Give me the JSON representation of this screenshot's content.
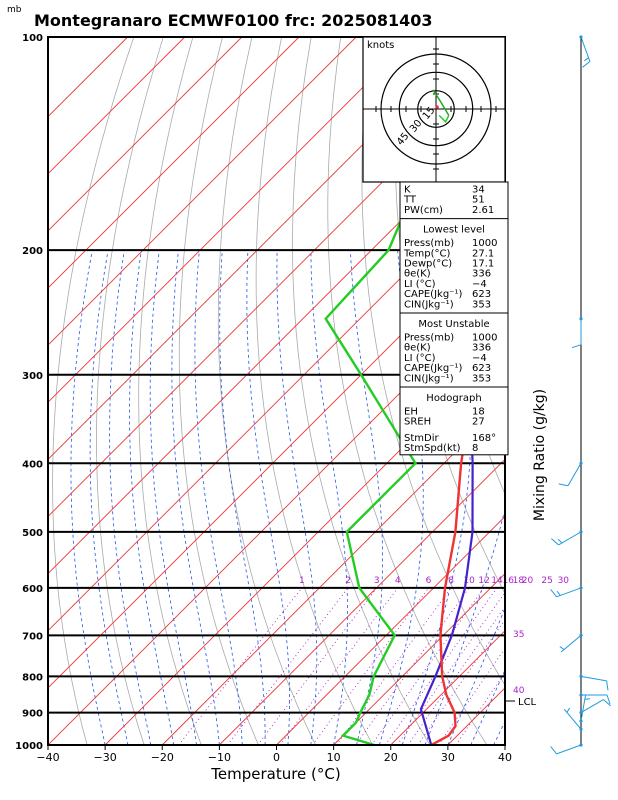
{
  "chart_data": {
    "type": "skew-t",
    "title": "Montegranaro ECMWF0100  frc: 2025081403",
    "pressure_unit": "mb",
    "xlabel": "Temperature (°C)",
    "right_label": "Mixing Ratio (g/kg)",
    "xlim": [
      -40,
      40
    ],
    "plim": [
      1000,
      100
    ],
    "x_ticks": [
      "−40",
      "−30",
      "−20",
      "−10",
      "0",
      "10",
      "20",
      "30",
      "40"
    ],
    "pressure_levels": [
      1000,
      900,
      800,
      700,
      600,
      500,
      400,
      300,
      200,
      100
    ],
    "pressure_labels": [
      "1000",
      "900",
      "800",
      "700",
      "600",
      "500",
      "400",
      "300",
      "200",
      "100"
    ],
    "mixing_ratio_labels": [
      "1",
      "2",
      "3",
      "4",
      "6",
      "8",
      "10",
      "12",
      "14",
      "16",
      "18",
      "20",
      "25",
      "30"
    ],
    "mixing_ratio_values": [
      1,
      2,
      3,
      4,
      6,
      8,
      10,
      12,
      14,
      16,
      18,
      20,
      25,
      30
    ],
    "theta_e_labels": [
      "35",
      "40"
    ],
    "lcl_label": "LCL",
    "lcl_pressure": 890,
    "temperature": [
      {
        "p": 1000,
        "t": 27.1
      },
      {
        "p": 970,
        "t": 28.5
      },
      {
        "p": 940,
        "t": 28.0
      },
      {
        "p": 900,
        "t": 25.5
      },
      {
        "p": 850,
        "t": 21.0
      },
      {
        "p": 800,
        "t": 17.0
      },
      {
        "p": 700,
        "t": 9.5
      },
      {
        "p": 600,
        "t": 2.0
      },
      {
        "p": 500,
        "t": -6.0
      },
      {
        "p": 400,
        "t": -17.0
      },
      {
        "p": 300,
        "t": -30.0
      },
      {
        "p": 250,
        "t": -40.0
      },
      {
        "p": 200,
        "t": -52.0
      },
      {
        "p": 150,
        "t": -62.0
      },
      {
        "p": 100,
        "t": -72.0
      }
    ],
    "dewpoint": [
      {
        "p": 1000,
        "t": 17.1
      },
      {
        "p": 970,
        "t": 10.0
      },
      {
        "p": 930,
        "t": 10.0
      },
      {
        "p": 900,
        "t": 9.0
      },
      {
        "p": 850,
        "t": 7.5
      },
      {
        "p": 800,
        "t": 5.0
      },
      {
        "p": 700,
        "t": 1.5
      },
      {
        "p": 600,
        "t": -13.0
      },
      {
        "p": 500,
        "t": -25.0
      },
      {
        "p": 400,
        "t": -25.0
      },
      {
        "p": 300,
        "t": -50.0
      },
      {
        "p": 250,
        "t": -66.0
      },
      {
        "p": 200,
        "t": -67.0
      },
      {
        "p": 150,
        "t": -76.0
      },
      {
        "p": 100,
        "t": -88.0
      }
    ],
    "parcel": [
      {
        "p": 1000,
        "t": 27.1
      },
      {
        "p": 890,
        "t": 19.0
      },
      {
        "p": 800,
        "t": 15.8
      },
      {
        "p": 700,
        "t": 11.5
      },
      {
        "p": 600,
        "t": 5.5
      },
      {
        "p": 500,
        "t": -3.0
      },
      {
        "p": 400,
        "t": -15.0
      },
      {
        "p": 300,
        "t": -31.0
      },
      {
        "p": 200,
        "t": -57.0
      },
      {
        "p": 130,
        "t": -82.0
      }
    ],
    "wind_barbs": [
      {
        "p": 1000,
        "dir": 250,
        "spd": 10
      },
      {
        "p": 950,
        "dir": 320,
        "spd": 5
      },
      {
        "p": 925,
        "dir": 10,
        "spd": 5
      },
      {
        "p": 900,
        "dir": 60,
        "spd": 10
      },
      {
        "p": 850,
        "dir": 90,
        "spd": 10
      },
      {
        "p": 800,
        "dir": 100,
        "spd": 10
      },
      {
        "p": 700,
        "dir": 230,
        "spd": 5
      },
      {
        "p": 600,
        "dir": 250,
        "spd": 15
      },
      {
        "p": 500,
        "dir": 240,
        "spd": 15
      },
      {
        "p": 400,
        "dir": 210,
        "spd": 10
      },
      {
        "p": 250,
        "dir": 180,
        "spd": 10
      },
      {
        "p": 100,
        "dir": 160,
        "spd": 15
      }
    ],
    "hodograph": {
      "units": "knots",
      "rings": [
        15,
        30,
        45
      ],
      "ring_labels": [
        "15",
        "30",
        "45"
      ],
      "points": [
        {
          "u": 1,
          "v": -2
        },
        {
          "u": 2,
          "v": -3
        },
        {
          "u": 3,
          "v": -4
        },
        {
          "u": 4,
          "v": -2
        },
        {
          "u": 1,
          "v": 3
        },
        {
          "u": -1,
          "v": 6
        }
      ]
    },
    "indices": {
      "general": [
        {
          "label": "K",
          "value": "34"
        },
        {
          "label": "TT",
          "value": "51"
        },
        {
          "label": "PW(cm)",
          "value": "2.61"
        }
      ],
      "lowest_level_title": "Lowest level",
      "lowest_level": [
        {
          "label": "Press(mb)",
          "value": "1000"
        },
        {
          "label": "Temp(°C)",
          "value": "27.1"
        },
        {
          "label": "Dewp(°C)",
          "value": "17.1"
        },
        {
          "label": "θe(K)",
          "value": "336"
        },
        {
          "label": "LI (°C)",
          "value": "−4"
        },
        {
          "label": "CAPE(Jkg⁻¹)",
          "value": "623"
        },
        {
          "label": "CIN(Jkg⁻¹)",
          "value": "353"
        }
      ],
      "most_unstable_title": "Most Unstable",
      "most_unstable": [
        {
          "label": "Press(mb)",
          "value": "1000"
        },
        {
          "label": "θe(K)",
          "value": "336"
        },
        {
          "label": "LI (°C)",
          "value": "−4"
        },
        {
          "label": "CAPE(Jkg⁻¹)",
          "value": "623"
        },
        {
          "label": "CIN(Jkg⁻¹)",
          "value": "353"
        }
      ],
      "hodograph_title": "Hodograph",
      "hodograph_stats": [
        {
          "label": "EH",
          "value": "18"
        },
        {
          "label": "SREH",
          "value": "27"
        },
        {
          "label": "StmDir",
          "value": "168°"
        },
        {
          "label": "StmSpd(kt)",
          "value": "8"
        }
      ]
    },
    "colors": {
      "temperature": "#ee3333",
      "dewpoint": "#22cc22",
      "parcel": "#4422cc",
      "isotherm": "#ee3333",
      "dry_adiabat": "#aaaaaa",
      "moist_adiabat": "#2255ee",
      "mixing_ratio": "#aa22cc",
      "barb": "#2299dd"
    }
  }
}
